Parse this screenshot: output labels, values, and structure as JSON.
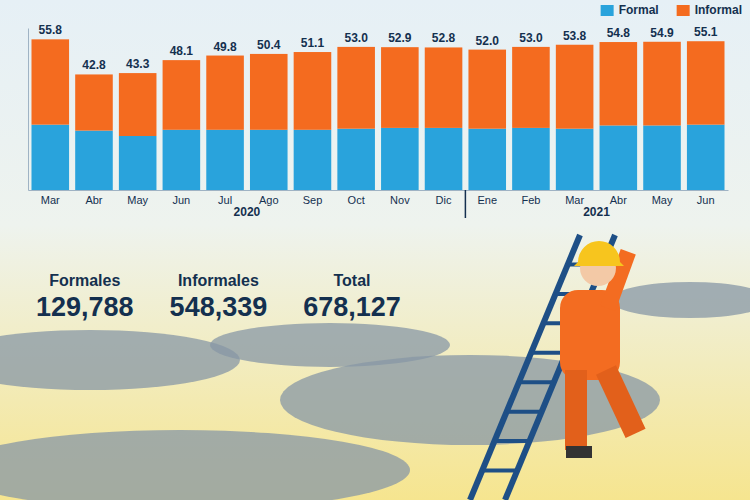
{
  "chart_data": {
    "type": "bar",
    "stacked": true,
    "categories": [
      "Mar",
      "Abr",
      "May",
      "Jun",
      "Jul",
      "Ago",
      "Sep",
      "Oct",
      "Nov",
      "Dic",
      "Ene",
      "Feb",
      "Mar",
      "Abr",
      "May",
      "Jun"
    ],
    "groups": [
      {
        "label": "2020",
        "count": 10
      },
      {
        "label": "2021",
        "count": 6
      }
    ],
    "series": [
      {
        "name": "Formal",
        "color": "#29a3dc",
        "values": [
          24.2,
          22.0,
          20.0,
          22.3,
          22.3,
          22.3,
          22.3,
          22.7,
          23.0,
          23.0,
          22.7,
          23.0,
          22.7,
          23.9,
          23.9,
          24.2
        ]
      },
      {
        "name": "Informal",
        "color": "#f46b1f",
        "values": [
          31.6,
          20.8,
          23.3,
          25.8,
          27.5,
          28.1,
          28.8,
          30.3,
          29.9,
          29.8,
          29.3,
          30.0,
          31.1,
          30.9,
          31.0,
          30.9
        ]
      }
    ],
    "totals": {
      "values": [
        55.8,
        42.8,
        43.3,
        48.1,
        49.8,
        50.4,
        51.1,
        53.0,
        52.9,
        52.8,
        52.0,
        53.0,
        53.8,
        54.8,
        54.9,
        55.1
      ],
      "value_labels": [
        "55.8",
        "42.8",
        "43.3",
        "48.1",
        "49.8",
        "50.4",
        "51.1",
        "53.0",
        "52.9",
        "52.8",
        "52.0",
        "53.0",
        "53.8",
        "54.8",
        "54.9",
        "55.1"
      ]
    },
    "ylim": [
      0,
      60
    ],
    "legend": "top-right",
    "tick_labels": "x"
  },
  "summary": [
    {
      "name": "Formales",
      "value": "129,788"
    },
    {
      "name": "Informales",
      "value": "548,339"
    },
    {
      "name": "Total",
      "value": "678,127"
    }
  ]
}
